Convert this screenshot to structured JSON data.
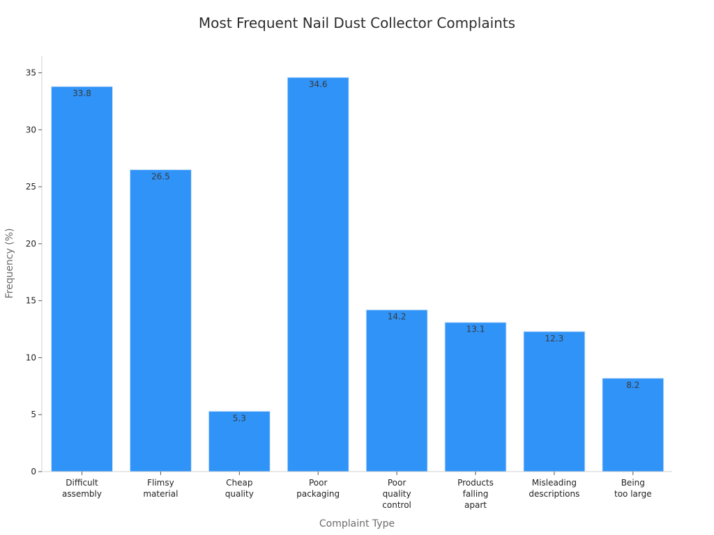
{
  "chart_data": {
    "type": "bar",
    "title": "Most Frequent Nail Dust Collector Complaints",
    "xlabel": "Complaint Type",
    "ylabel": "Frequency (%)",
    "categories": [
      [
        "Difficult",
        "assembly"
      ],
      [
        "Flimsy",
        "material"
      ],
      [
        "Cheap",
        "quality"
      ],
      [
        "Poor",
        "packaging"
      ],
      [
        "Poor",
        "quality",
        "control"
      ],
      [
        "Products",
        "falling",
        "apart"
      ],
      [
        "Misleading",
        "descriptions"
      ],
      [
        "Being",
        "too large"
      ]
    ],
    "values": [
      33.8,
      26.5,
      5.3,
      34.6,
      14.2,
      13.1,
      12.3,
      8.2
    ],
    "data_labels": [
      "33.8",
      "26.5",
      "5.3",
      "34.6",
      "14.2",
      "13.1",
      "12.3",
      "8.2"
    ],
    "yticks": [
      "0",
      "5",
      "10",
      "15",
      "20",
      "25",
      "30",
      "35"
    ],
    "ylim": [
      0,
      36.5
    ],
    "grid": false,
    "legend": "none",
    "bar_color": "#2f93f8",
    "bar_edge_color": "#d9e8f8"
  }
}
